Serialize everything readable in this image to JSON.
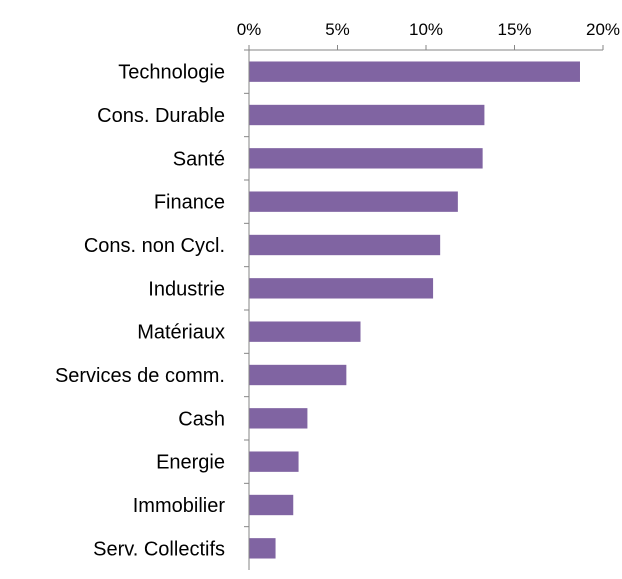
{
  "chart_data": {
    "type": "bar",
    "orientation": "horizontal",
    "title": "",
    "xlabel": "",
    "ylabel": "",
    "xlim": [
      0,
      20
    ],
    "x_ticks": [
      0,
      5,
      10,
      15,
      20
    ],
    "x_tick_labels": [
      "0%",
      "5%",
      "10%",
      "15%",
      "20%"
    ],
    "x_axis_position": "top",
    "grid": false,
    "legend": "none",
    "categories": [
      "Technologie",
      "Cons. Durable",
      "Santé",
      "Finance",
      "Cons. non Cycl.",
      "Industrie",
      "Matériaux",
      "Services de comm.",
      "Cash",
      "Energie",
      "Immobilier",
      "Serv. Collectifs"
    ],
    "values": [
      18.7,
      13.3,
      13.2,
      11.8,
      10.8,
      10.4,
      6.3,
      5.5,
      3.3,
      2.8,
      2.5,
      1.5
    ],
    "unit": "%",
    "colors": {
      "bar": "#8064A2",
      "axis": "#868686",
      "text": "#000000"
    }
  }
}
